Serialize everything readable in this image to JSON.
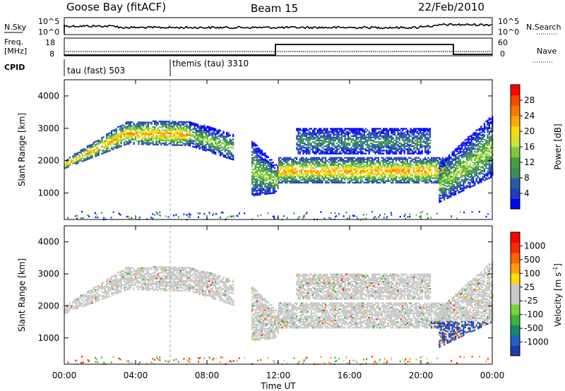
{
  "header": {
    "station": "Goose Bay (fitACF)",
    "beam": "Beam 15",
    "date": "22/Feb/2010"
  },
  "left_labels": {
    "nsky": "N.Sky",
    "freq_line1": "Freq.",
    "freq_line2": "[MHz]",
    "cpid": "CPID"
  },
  "right_labels": {
    "nsearch": "N.Search",
    "nave": "Nave"
  },
  "noise_panel": {
    "left_ticks": [
      "10^5",
      "10^0"
    ],
    "right_ticks": [
      "10^5",
      "10^0"
    ]
  },
  "freq_panel": {
    "left_ticks": [
      "18",
      "8"
    ],
    "right_ticks": [
      "60",
      "0"
    ]
  },
  "cpid_panel": {
    "modes": [
      {
        "label": "tau (fast) 503",
        "start_hour": 0
      },
      {
        "label": "themis (tau) 3310",
        "start_hour": 6
      }
    ]
  },
  "x_axis": {
    "ticks": [
      "00:00",
      "04:00",
      "08:00",
      "12:00",
      "16:00",
      "20:00",
      "00:00"
    ],
    "label": "Time UT"
  },
  "y_axis": {
    "label": "Slant Range [km]",
    "ticks": [
      "1000",
      "2000",
      "3000",
      "4000"
    ]
  },
  "power_colorbar": {
    "label": "Power [dB]",
    "ticks": [
      "4",
      "8",
      "12",
      "16",
      "20",
      "24",
      "28"
    ],
    "colors": [
      "#0000ff",
      "#1f3fbf",
      "#2a5aa0",
      "#3c8c5a",
      "#46a03c",
      "#7dc83c",
      "#c8e632",
      "#ffdc00",
      "#ffaa00",
      "#ff7800",
      "#ff4600",
      "#ff0000"
    ]
  },
  "velocity_colorbar": {
    "label": "Velocity [m s",
    "label_sup": "-1",
    "label_end": "]",
    "ticks": [
      "1000",
      "500",
      "100",
      "25",
      "-25",
      "-100",
      "-500",
      "-1000"
    ],
    "colors": [
      "#1e3caa",
      "#1e64c8",
      "#148c64",
      "#3cb43c",
      "#78d23c",
      "#c8c8c8",
      "#c8c8c8",
      "#ffdc00",
      "#ffa000",
      "#ff6400",
      "#ff2800",
      "#ff0000"
    ]
  },
  "chart_data": {
    "type": "heatmap",
    "xlim_hours": [
      0,
      24
    ],
    "ylim_km": [
      180,
      4500
    ],
    "panels": [
      {
        "name": "Power",
        "features": [
          {
            "t0": 0.0,
            "t1": 3.5,
            "r0_start": 1750,
            "r0_end": 2500,
            "r1_start": 2000,
            "r1_end": 3200,
            "level": "high"
          },
          {
            "t0": 3.5,
            "t1": 7.0,
            "r0_start": 2500,
            "r0_end": 2450,
            "r1_start": 3200,
            "r1_end": 3200,
            "level": "high"
          },
          {
            "t0": 7.0,
            "t1": 9.5,
            "r0_start": 2450,
            "r0_end": 2000,
            "r1_start": 3200,
            "r1_end": 2800,
            "level": "mid"
          },
          {
            "t0": 10.5,
            "t1": 12.0,
            "r0_start": 900,
            "r0_end": 1000,
            "r1_start": 2600,
            "r1_end": 1800,
            "level": "mid"
          },
          {
            "t0": 12.0,
            "t1": 21.5,
            "r0_start": 1300,
            "r0_end": 1300,
            "r1_start": 2100,
            "r1_end": 2100,
            "level": "high"
          },
          {
            "t0": 13.0,
            "t1": 20.5,
            "r0_start": 2200,
            "r0_end": 2200,
            "r1_start": 3000,
            "r1_end": 3000,
            "level": "low"
          },
          {
            "t0": 21.0,
            "t1": 24.0,
            "r0_start": 700,
            "r0_end": 1500,
            "r1_start": 1900,
            "r1_end": 3400,
            "level": "mid"
          }
        ]
      },
      {
        "name": "Velocity",
        "features": "same echo region as Power panel; mostly |v| < 25 m/s (grey), with scattered positive and negative velocities near 21-23 UT at 800-1500 km"
      }
    ]
  }
}
